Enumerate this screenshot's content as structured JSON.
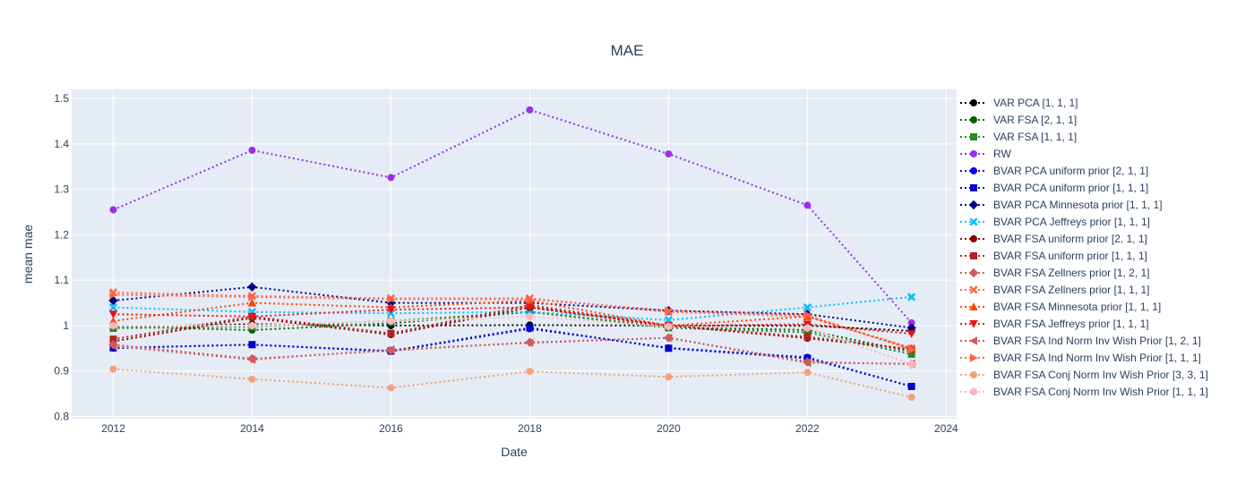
{
  "chart_data": {
    "type": "line",
    "title": "MAE",
    "xlabel": "Date",
    "ylabel": "mean mae",
    "xlim": [
      2011.4,
      2024.15
    ],
    "ylim": [
      0.795,
      1.52
    ],
    "xticks": [
      2012,
      2014,
      2016,
      2018,
      2020,
      2022,
      2024
    ],
    "yticks": [
      0.8,
      0.9,
      1,
      1.1,
      1.2,
      1.3,
      1.4,
      1.5
    ],
    "ytick_labels": [
      "0.8",
      "0.9",
      "1",
      "1.1",
      "1.2",
      "1.3",
      "1.4",
      "1.5"
    ],
    "grid": true,
    "legend_position": "right",
    "x": [
      2012,
      2014,
      2016,
      2018,
      2020,
      2022,
      2023.5
    ],
    "series": [
      {
        "name": "VAR PCA [1, 1, 1]",
        "color": "#000000",
        "marker": "circle",
        "values": [
          0.997,
          1.003,
          1.0,
          1.001,
          1.0,
          1.0,
          0.988
        ]
      },
      {
        "name": "VAR FSA [2, 1, 1]",
        "color": "#006400",
        "marker": "circle",
        "values": [
          0.998,
          0.99,
          1.005,
          1.03,
          0.997,
          0.99,
          0.942
        ]
      },
      {
        "name": "VAR FSA [1, 1, 1]",
        "color": "#228b22",
        "marker": "square",
        "values": [
          0.994,
          0.998,
          1.01,
          1.03,
          0.995,
          0.985,
          0.937
        ]
      },
      {
        "name": "RW",
        "color": "#9b30e6",
        "marker": "circle",
        "values": [
          1.255,
          1.386,
          1.326,
          1.475,
          1.378,
          1.265,
          1.006
        ]
      },
      {
        "name": "BVAR PCA uniform prior [2, 1, 1]",
        "color": "#0000ee",
        "marker": "circle",
        "values": [
          0.95,
          0.958,
          0.943,
          0.993,
          0.951,
          0.93,
          0.866
        ]
      },
      {
        "name": "BVAR PCA uniform prior [1, 1, 1]",
        "color": "#0000cd",
        "marker": "square",
        "values": [
          0.951,
          0.958,
          0.944,
          0.995,
          0.95,
          0.928,
          0.866
        ]
      },
      {
        "name": "BVAR PCA Minnesota prior [1, 1, 1]",
        "color": "#00008b",
        "marker": "diamond",
        "values": [
          1.055,
          1.085,
          1.05,
          1.05,
          1.033,
          1.025,
          0.995
        ]
      },
      {
        "name": "BVAR PCA Jeffreys prior [1, 1, 1]",
        "color": "#00bfff",
        "marker": "x",
        "values": [
          1.04,
          1.03,
          1.027,
          1.03,
          1.012,
          1.04,
          1.063
        ]
      },
      {
        "name": "BVAR FSA uniform prior [2, 1, 1]",
        "color": "#8b0000",
        "marker": "circle",
        "values": [
          0.965,
          1.017,
          0.98,
          1.04,
          1.0,
          0.972,
          0.948
        ]
      },
      {
        "name": "BVAR FSA uniform prior [1, 1, 1]",
        "color": "#b22222",
        "marker": "square",
        "values": [
          0.97,
          1.02,
          0.983,
          1.045,
          1.0,
          0.975,
          0.948
        ]
      },
      {
        "name": "BVAR FSA Zellners prior [1, 2, 1]",
        "color": "#cd5c5c",
        "marker": "diamond",
        "values": [
          0.958,
          0.927,
          0.945,
          0.963,
          0.973,
          0.92,
          0.915
        ]
      },
      {
        "name": "BVAR FSA Zellners prior [1, 1, 1]",
        "color": "#ff6347",
        "marker": "x",
        "values": [
          1.073,
          1.065,
          1.06,
          1.06,
          1.03,
          1.02,
          0.95
        ]
      },
      {
        "name": "BVAR FSA Minnesota prior [1, 1, 1]",
        "color": "#ff4500",
        "marker": "triangle-up",
        "values": [
          1.01,
          1.05,
          1.04,
          1.055,
          1.0,
          1.02,
          0.95
        ]
      },
      {
        "name": "BVAR FSA Jeffreys prior [1, 1, 1]",
        "color": "#ee1111",
        "marker": "triangle-down",
        "values": [
          1.025,
          1.02,
          1.035,
          1.04,
          0.999,
          1.003,
          0.982
        ]
      },
      {
        "name": "BVAR FSA Ind Norm Inv Wish Prior [1, 2, 1]",
        "color": "#cd5c5c",
        "marker": "triangle-left",
        "values": [
          0.955,
          0.925,
          0.947,
          0.962,
          0.973,
          0.918,
          0.916
        ]
      },
      {
        "name": "BVAR FSA Ind Norm Inv Wish Prior [1, 1, 1]",
        "color": "#ff6347",
        "marker": "triangle-right",
        "values": [
          1.068,
          1.063,
          1.058,
          1.058,
          1.033,
          1.023,
          0.947
        ]
      },
      {
        "name": "BVAR FSA Conj Norm Inv Wish Prior [3, 3, 1]",
        "color": "#f4a07a",
        "marker": "circle",
        "values": [
          0.904,
          0.882,
          0.863,
          0.899,
          0.887,
          0.897,
          0.842
        ]
      },
      {
        "name": "BVAR FSA Conj Norm Inv Wish Prior [1, 1, 1]",
        "color": "#ffb6c1",
        "marker": "hexagon",
        "values": [
          1.0,
          1.0,
          1.01,
          1.02,
          0.998,
          0.995,
          0.915
        ]
      }
    ]
  }
}
